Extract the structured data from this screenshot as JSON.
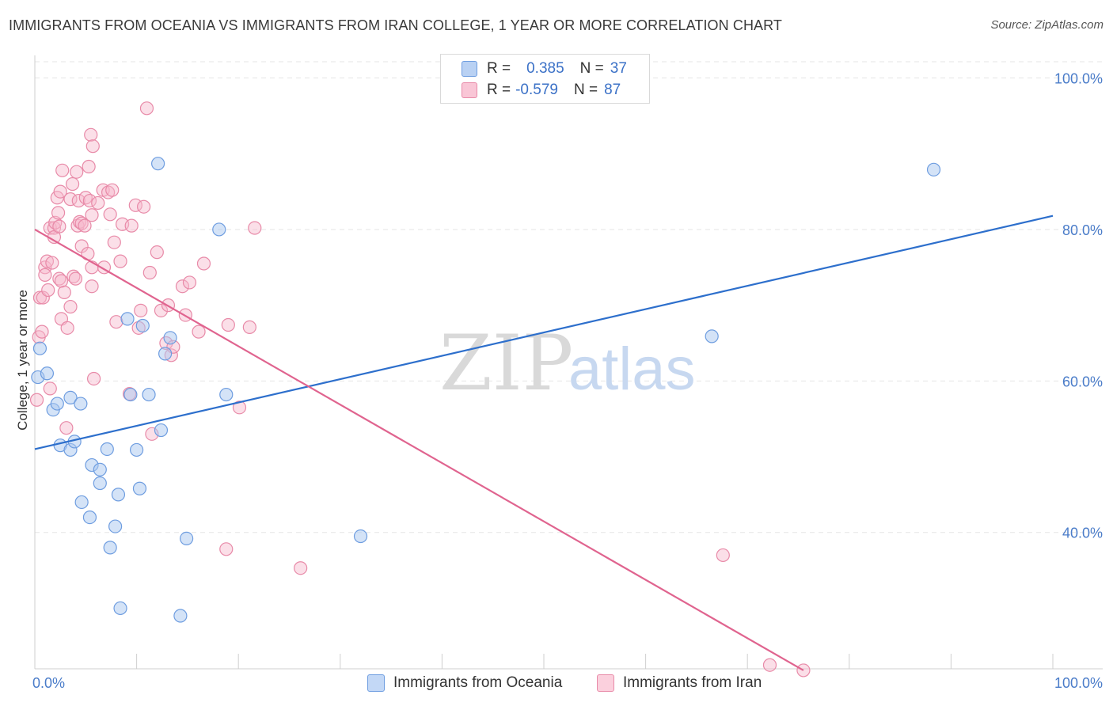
{
  "title": "IMMIGRANTS FROM OCEANIA VS IMMIGRANTS FROM IRAN COLLEGE, 1 YEAR OR MORE CORRELATION CHART",
  "source": "Source: ZipAtlas.com",
  "watermark": {
    "zip": "ZIP",
    "atlas": "atlas"
  },
  "colors": {
    "blue_fill": "#a9c7ef",
    "blue_stroke": "#6e9de0",
    "blue_line": "#2d6fcc",
    "pink_fill": "#f7b8cb",
    "pink_stroke": "#e88aa8",
    "pink_line": "#e0648f",
    "tick_text": "#4a7cc9",
    "grid": "#e5e5e5"
  },
  "legend": {
    "rows": [
      {
        "r_label": "R =",
        "r_value": "0.385",
        "n_label": "N =",
        "n_value": "37"
      },
      {
        "r_label": "R =",
        "r_value": "-0.579",
        "n_label": "N =",
        "n_value": "87"
      }
    ]
  },
  "series_labels": {
    "oceania": "Immigrants from Oceania",
    "iran": "Immigrants from Iran"
  },
  "chart_data": {
    "type": "scatter",
    "title": "IMMIGRANTS FROM OCEANIA VS IMMIGRANTS FROM IRAN COLLEGE, 1 YEAR OR MORE CORRELATION CHART",
    "xlabel": "",
    "ylabel": "College, 1 year or more",
    "xlim": [
      0,
      100
    ],
    "ylim": [
      22,
      100
    ],
    "x_tick_labels": [
      "0.0%",
      "100.0%"
    ],
    "y_ticks": [
      40,
      60,
      80,
      100
    ],
    "y_tick_labels": [
      "40.0%",
      "60.0%",
      "80.0%",
      "100.0%"
    ],
    "series": [
      {
        "name": "Immigrants from Oceania",
        "r": 0.385,
        "n": 37,
        "trend": {
          "x": [
            0,
            100
          ],
          "y": [
            51.0,
            81.8
          ]
        },
        "points": [
          [
            0.3,
            60.5
          ],
          [
            1.2,
            61.0
          ],
          [
            0.5,
            64.3
          ],
          [
            1.8,
            56.2
          ],
          [
            2.2,
            57.0
          ],
          [
            2.5,
            51.5
          ],
          [
            3.5,
            57.8
          ],
          [
            3.5,
            50.9
          ],
          [
            3.9,
            52.0
          ],
          [
            4.5,
            57.0
          ],
          [
            4.6,
            44.0
          ],
          [
            5.4,
            42.0
          ],
          [
            5.6,
            48.9
          ],
          [
            6.4,
            46.5
          ],
          [
            6.4,
            48.3
          ],
          [
            7.1,
            51.0
          ],
          [
            7.4,
            38.0
          ],
          [
            7.9,
            40.8
          ],
          [
            8.2,
            45.0
          ],
          [
            8.4,
            30.0
          ],
          [
            9.1,
            68.2
          ],
          [
            9.4,
            58.2
          ],
          [
            10.0,
            50.9
          ],
          [
            10.3,
            45.8
          ],
          [
            10.6,
            67.3
          ],
          [
            11.2,
            58.2
          ],
          [
            12.1,
            88.7
          ],
          [
            12.4,
            53.5
          ],
          [
            12.8,
            63.6
          ],
          [
            13.3,
            65.7
          ],
          [
            14.3,
            29.0
          ],
          [
            14.9,
            39.2
          ],
          [
            18.1,
            80.0
          ],
          [
            18.8,
            58.2
          ],
          [
            32.0,
            39.5
          ],
          [
            66.5,
            65.9
          ],
          [
            88.3,
            87.9
          ]
        ]
      },
      {
        "name": "Immigrants from Iran",
        "r": -0.579,
        "n": 87,
        "trend": {
          "x": [
            0,
            75.5
          ],
          "y": [
            80.0,
            21.8
          ]
        },
        "points": [
          [
            0.2,
            57.5
          ],
          [
            0.4,
            65.8
          ],
          [
            0.5,
            71.0
          ],
          [
            0.7,
            66.5
          ],
          [
            0.8,
            71.0
          ],
          [
            1.0,
            75.0
          ],
          [
            1.0,
            74.0
          ],
          [
            1.2,
            75.8
          ],
          [
            1.3,
            72.0
          ],
          [
            1.5,
            59.0
          ],
          [
            1.5,
            80.2
          ],
          [
            1.7,
            75.6
          ],
          [
            1.9,
            80.2
          ],
          [
            1.9,
            79.0
          ],
          [
            2.0,
            80.9
          ],
          [
            2.2,
            84.2
          ],
          [
            2.3,
            82.2
          ],
          [
            2.4,
            80.4
          ],
          [
            2.4,
            73.5
          ],
          [
            2.5,
            85.0
          ],
          [
            2.6,
            68.2
          ],
          [
            2.6,
            73.2
          ],
          [
            2.7,
            87.8
          ],
          [
            2.9,
            71.7
          ],
          [
            3.1,
            53.8
          ],
          [
            3.2,
            67.0
          ],
          [
            3.5,
            69.8
          ],
          [
            3.5,
            84.0
          ],
          [
            3.7,
            86.0
          ],
          [
            3.8,
            73.8
          ],
          [
            4.0,
            73.5
          ],
          [
            4.1,
            87.6
          ],
          [
            4.2,
            80.5
          ],
          [
            4.3,
            83.8
          ],
          [
            4.4,
            81.0
          ],
          [
            4.6,
            80.8
          ],
          [
            4.6,
            77.8
          ],
          [
            4.9,
            80.5
          ],
          [
            5.0,
            84.2
          ],
          [
            5.2,
            76.8
          ],
          [
            5.3,
            88.3
          ],
          [
            5.4,
            83.8
          ],
          [
            5.5,
            92.5
          ],
          [
            5.6,
            81.9
          ],
          [
            5.6,
            75.0
          ],
          [
            5.6,
            72.5
          ],
          [
            5.7,
            91.0
          ],
          [
            5.8,
            60.3
          ],
          [
            6.2,
            83.5
          ],
          [
            6.7,
            85.2
          ],
          [
            6.8,
            75.0
          ],
          [
            7.2,
            84.9
          ],
          [
            7.4,
            82.0
          ],
          [
            7.6,
            85.2
          ],
          [
            7.8,
            78.3
          ],
          [
            8.0,
            67.8
          ],
          [
            8.4,
            75.8
          ],
          [
            8.6,
            80.7
          ],
          [
            9.3,
            58.3
          ],
          [
            9.5,
            80.5
          ],
          [
            9.9,
            83.2
          ],
          [
            10.2,
            67.0
          ],
          [
            10.4,
            69.3
          ],
          [
            10.7,
            83.0
          ],
          [
            11.0,
            96.0
          ],
          [
            11.3,
            74.3
          ],
          [
            11.5,
            53.0
          ],
          [
            12.0,
            77.0
          ],
          [
            12.4,
            69.3
          ],
          [
            12.9,
            65.0
          ],
          [
            13.1,
            70.0
          ],
          [
            13.4,
            63.4
          ],
          [
            13.6,
            64.5
          ],
          [
            14.5,
            72.5
          ],
          [
            14.8,
            68.7
          ],
          [
            15.2,
            73.0
          ],
          [
            16.1,
            66.5
          ],
          [
            16.6,
            75.5
          ],
          [
            18.8,
            37.8
          ],
          [
            19.0,
            67.4
          ],
          [
            20.1,
            56.5
          ],
          [
            21.1,
            67.1
          ],
          [
            21.6,
            80.2
          ],
          [
            26.1,
            35.3
          ],
          [
            67.6,
            37.0
          ],
          [
            72.2,
            22.5
          ],
          [
            75.5,
            21.8
          ]
        ]
      }
    ]
  }
}
